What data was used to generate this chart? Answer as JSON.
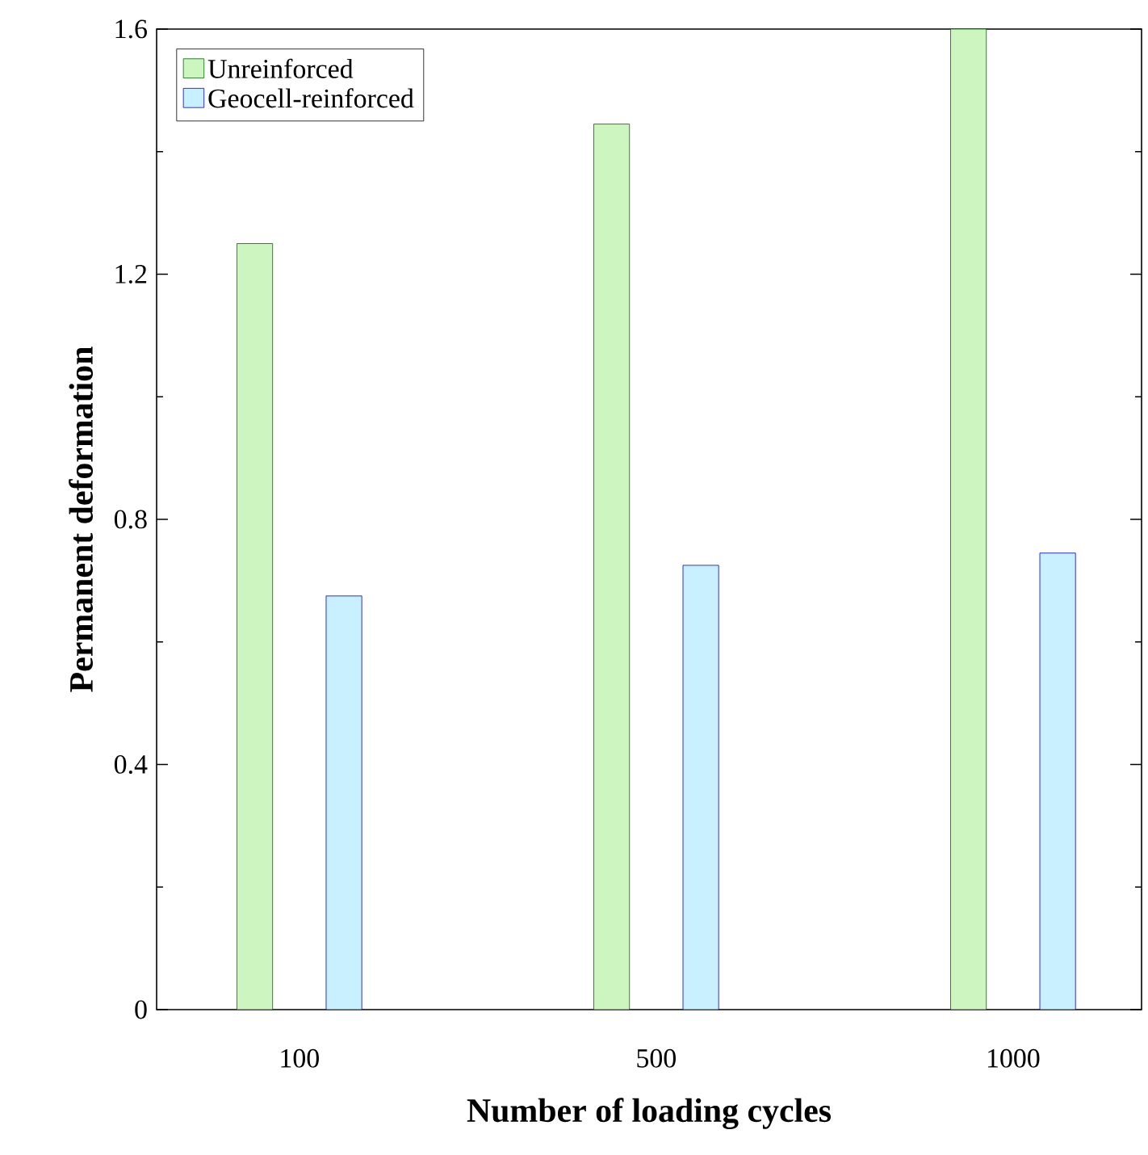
{
  "chart_data": {
    "type": "bar",
    "xlabel": "Number of loading cycles",
    "ylabel": "Permanent deformation",
    "categories": [
      "100",
      "500",
      "1000"
    ],
    "series": [
      {
        "name": "Unreinforced",
        "color": "#ccf5c0",
        "values": [
          1.25,
          1.445,
          1.6
        ]
      },
      {
        "name": "Geocell-reinforced",
        "color": "#c8f0ff",
        "values": [
          0.675,
          0.725,
          0.745
        ]
      }
    ],
    "ylim": [
      0,
      1.6
    ],
    "yticks": [
      0,
      0.4,
      0.8,
      1.2,
      1.6
    ],
    "legend": "top left"
  }
}
